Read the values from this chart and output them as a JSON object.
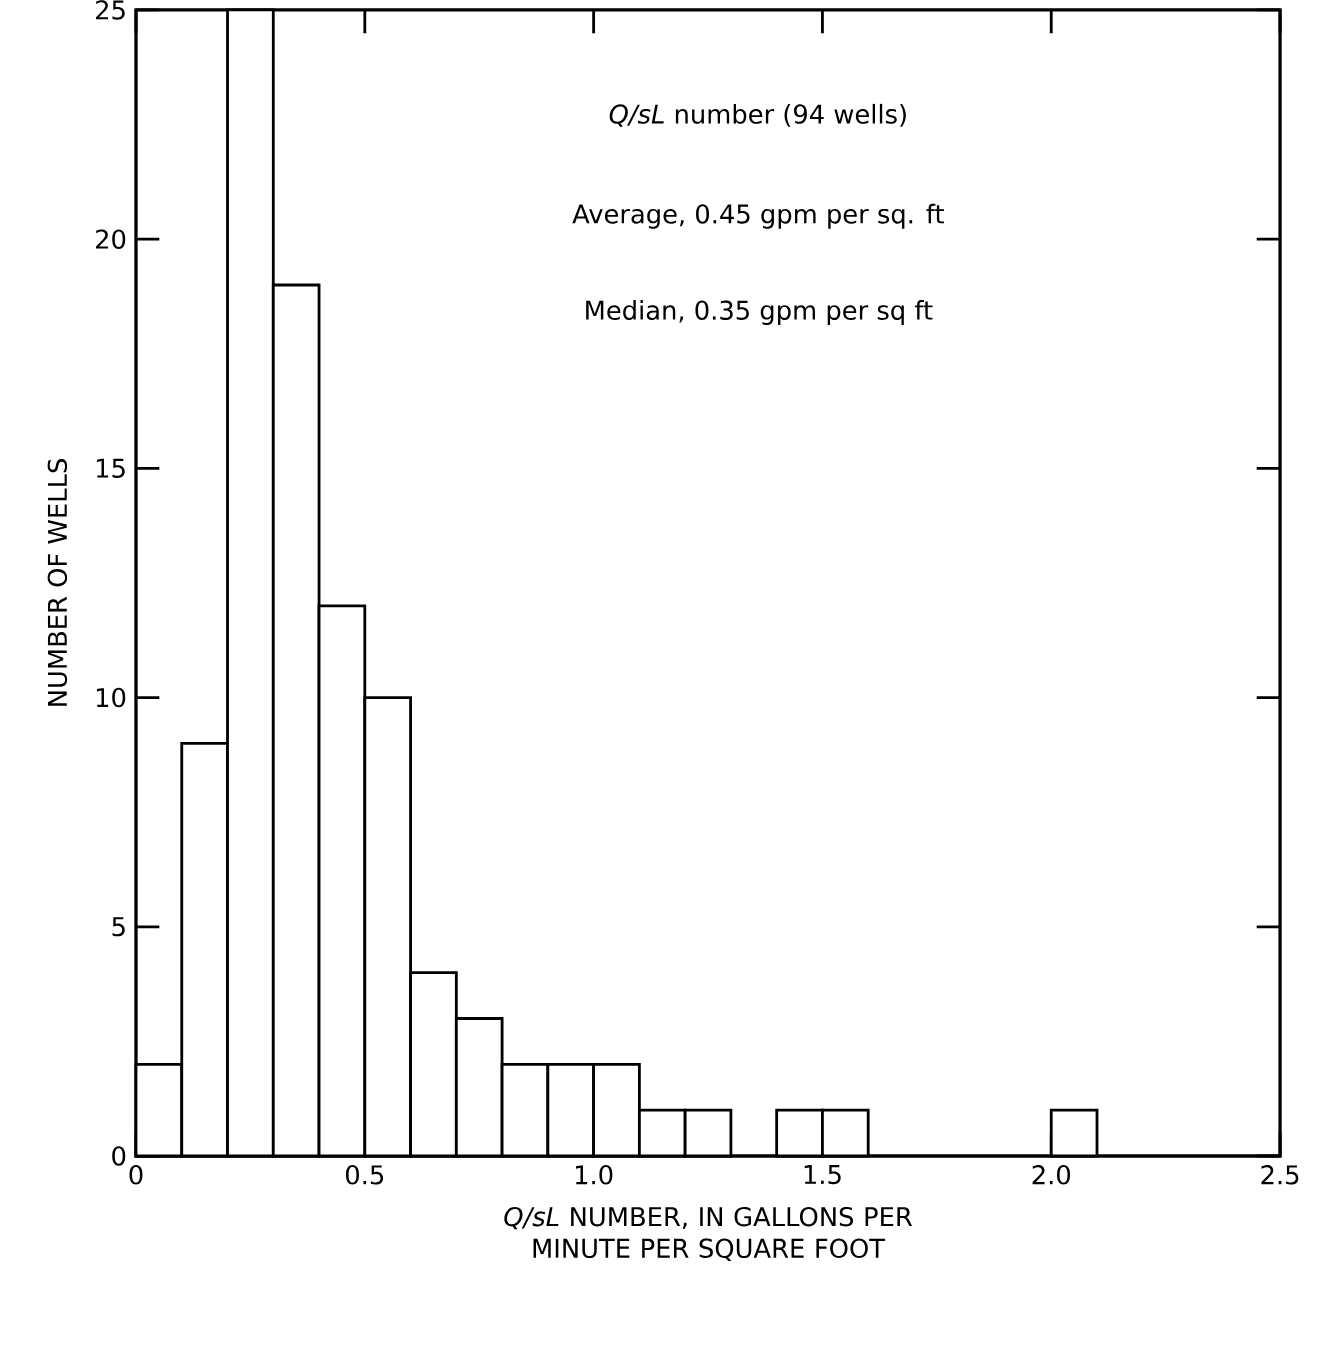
{
  "chart_data": {
    "type": "histogram",
    "xlabel": "*Q/sL* NUMBER, IN GALLONS PER MINUTE PER SQUARE FOOT",
    "ylabel": "NUMBER OF WELLS",
    "annotations": [
      "*Q/sL* number (94 wells)",
      "Average, 0.45 gpm per sq. ft",
      "Median, 0.35 gpm per sq ft"
    ],
    "bins": [
      0,
      0.1,
      0.2,
      0.3,
      0.4,
      0.5,
      0.6,
      0.7,
      0.8,
      0.9,
      1.0,
      1.1,
      1.2,
      1.3,
      1.4,
      1.5,
      1.6,
      1.7,
      1.8,
      1.9,
      2.0,
      2.1
    ],
    "values": [
      2,
      9,
      25,
      19,
      12,
      10,
      4,
      3,
      2,
      2,
      2,
      1,
      1,
      0,
      1,
      1,
      0,
      0,
      0,
      0,
      1
    ],
    "color": "#ffffff",
    "xlim": [
      0,
      2.5
    ],
    "ylim": [
      0,
      25
    ],
    "xticks": [
      0,
      0.5,
      {
        "value": 1,
        "label": "1.0"
      },
      1.5,
      {
        "value": 2,
        "label": "2.0"
      },
      2.5
    ],
    "yticks": [
      0,
      5,
      10,
      15,
      20,
      25
    ],
    "grid": false
  }
}
